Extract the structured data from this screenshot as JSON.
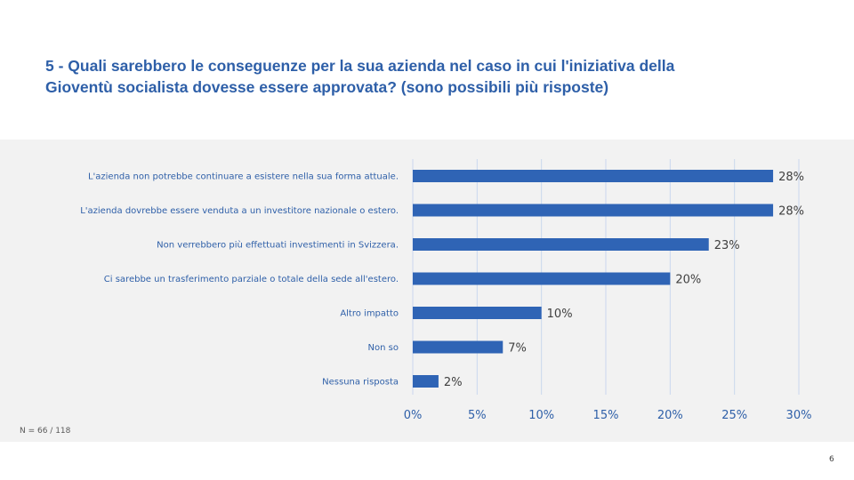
{
  "slide": {
    "title_line1": "5 - Quali sarebbero le conseguenze per la sua azienda nel caso in cui l'iniziativa della",
    "title_line2": "Gioventù socialista dovesse essere approvata? (sono possibili più risposte)",
    "footnote": "N = 66 / 118",
    "page_number": "6"
  },
  "colors": {
    "title": "#2E5FA8",
    "bar": "#2F64B5",
    "panel_background": "#F2F2F2",
    "gridline": "#C9D7EE",
    "category_text": "#2E5FA8",
    "value_text": "#404040",
    "tick_text": "#2E5FA8"
  },
  "chart_data": {
    "type": "bar",
    "orientation": "horizontal",
    "categories": [
      "L'azienda non potrebbe continuare a esistere nella sua forma attuale.",
      "L'azienda dovrebbe essere venduta a un investitore nazionale o estero.",
      "Non verrebbero più effettuati investimenti in Svizzera.",
      "Ci sarebbe un trasferimento parziale o totale della sede all'estero.",
      "Altro impatto",
      "Non so",
      "Nessuna risposta"
    ],
    "values": [
      28,
      28,
      23,
      20,
      10,
      7,
      2
    ],
    "value_labels": [
      "28%",
      "28%",
      "23%",
      "20%",
      "10%",
      "7%",
      "2%"
    ],
    "xlim": [
      0,
      30
    ],
    "x_ticks": [
      0,
      5,
      10,
      15,
      20,
      25,
      30
    ],
    "x_tick_labels": [
      "0%",
      "5%",
      "10%",
      "15%",
      "20%",
      "25%",
      "30%"
    ],
    "grid": true,
    "legend": false
  }
}
